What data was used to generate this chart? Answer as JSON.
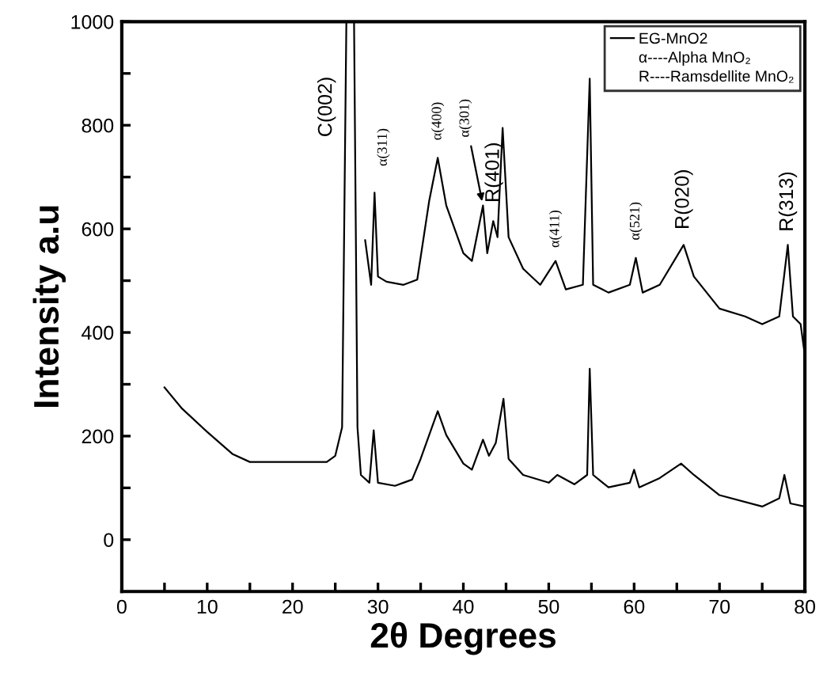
{
  "chart_data": {
    "type": "line",
    "xlabel": "2θ Degrees",
    "ylabel": "Intensity a.u",
    "xlim": [
      0,
      80
    ],
    "ylim": [
      -100,
      1000
    ],
    "xticks": [
      0,
      {
        "value": 5,
        "label": null
      },
      10,
      {
        "value": 15,
        "label": null
      },
      20,
      {
        "value": 25,
        "label": null
      },
      30,
      {
        "value": 35,
        "label": null
      },
      40,
      {
        "value": 45,
        "label": null
      },
      50,
      {
        "value": 55,
        "label": null
      },
      60,
      {
        "value": 65,
        "label": null
      },
      70,
      {
        "value": 75,
        "label": null
      },
      80
    ],
    "yticks": [
      0,
      {
        "value": 100,
        "label": null
      },
      200,
      {
        "value": 300,
        "label": null
      },
      400,
      {
        "value": 500,
        "label": null
      },
      600,
      {
        "value": 700,
        "label": null
      },
      800,
      {
        "value": 900,
        "label": null
      },
      1000
    ],
    "legend": "top right",
    "grid": false,
    "series": [
      {
        "name": "EG-MnO2",
        "color": "#000000",
        "x": [
          28.5,
          29.2,
          29.6,
          30,
          31,
          33,
          34.6,
          36,
          37,
          38,
          40,
          41,
          42.3,
          42.8,
          43.5,
          44,
          44.6,
          45.3,
          47,
          49,
          50.8,
          52,
          54,
          54.8,
          55.2,
          57,
          59.5,
          60.2,
          61,
          63,
          65.8,
          67,
          70,
          73,
          75,
          77,
          78,
          78.6,
          79.5,
          80
        ],
        "values": [
          578,
          492,
          670,
          508,
          498,
          492,
          502,
          654,
          737,
          645,
          553,
          538,
          645,
          553,
          615,
          584,
          795,
          584,
          523,
          492,
          538,
          483,
          492,
          890,
          492,
          477,
          492,
          544,
          477,
          492,
          569,
          508,
          446,
          431,
          416,
          431,
          569,
          431,
          416,
          355
        ]
      },
      {
        "color": "#000000",
        "x": [
          5,
          7,
          10,
          13,
          15,
          20,
          24,
          25,
          25.8,
          26.3,
          27.2,
          27.6,
          28,
          29,
          29.5,
          30,
          32,
          34,
          35,
          37,
          38,
          40,
          41,
          42.3,
          43,
          43.8,
          44.7,
          45.3,
          47,
          50,
          51,
          53,
          54.5,
          54.8,
          55.2,
          57,
          59.5,
          60,
          60.6,
          63,
          65.5,
          67,
          70,
          75,
          77,
          77.6,
          78.3,
          80
        ],
        "values": [
          294,
          254,
          208,
          165,
          150,
          150,
          150,
          162,
          217,
          1000,
          1000,
          217,
          125,
          110,
          211,
          110,
          104,
          116,
          156,
          248,
          202,
          147,
          135,
          193,
          162,
          187,
          272,
          156,
          125,
          110,
          125,
          107,
          125,
          330,
          125,
          101,
          110,
          135,
          101,
          119,
          147,
          125,
          86,
          64,
          80,
          125,
          70,
          64
        ]
      }
    ],
    "annotations": [
      "α----Alpha MnO₂",
      "R----Ramsdellite MnO₂",
      {
        "text": "C(002)",
        "x": 26.3,
        "y": 1000
      },
      {
        "text": "α(311)",
        "x": 29.6,
        "y": 670
      },
      {
        "text": "α(400)",
        "x": 37,
        "y": 737
      },
      {
        "text": "α(301)",
        "x": 42.3,
        "y": 645
      },
      {
        "text": "R(401)",
        "x": 44.6,
        "y": 795
      },
      {
        "text": "α(411)",
        "x": 50.8,
        "y": 538
      },
      {
        "text": "α(521)",
        "x": 60.2,
        "y": 544
      },
      {
        "text": "R(020)",
        "x": 65.8,
        "y": 569
      },
      {
        "text": "R(313)",
        "x": 78,
        "y": 569
      }
    ]
  }
}
